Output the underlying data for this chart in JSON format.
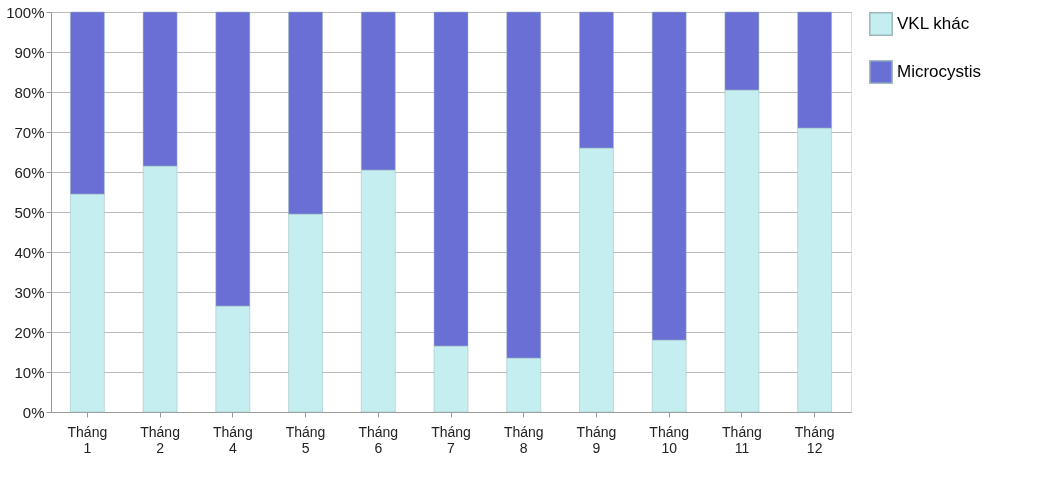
{
  "chart_data": {
    "type": "bar",
    "stacked": true,
    "categories": [
      "Tháng 1",
      "Tháng 2",
      "Tháng 4",
      "Tháng 5",
      "Tháng 6",
      "Tháng 7",
      "Tháng 8",
      "Tháng 9",
      "Tháng 10",
      "Tháng 11",
      "Tháng 12"
    ],
    "series": [
      {
        "name": "VKL khác",
        "color": "#c4eef0",
        "values": [
          54.5,
          61.5,
          26.5,
          49.5,
          60.5,
          16.5,
          13.5,
          66,
          18,
          80.5,
          71
        ]
      },
      {
        "name": "Microcystis",
        "color": "#6a6fd6",
        "values": [
          45.5,
          38.5,
          73.5,
          50.5,
          39.5,
          83.5,
          86.5,
          34,
          82,
          19.5,
          29
        ]
      }
    ],
    "ylim": [
      0,
      100
    ],
    "yticks": [
      {
        "value": 0,
        "label": "0%"
      },
      {
        "value": 10,
        "label": "10%"
      },
      {
        "value": 20,
        "label": "20%"
      },
      {
        "value": 30,
        "label": "30%"
      },
      {
        "value": 40,
        "label": "40%"
      },
      {
        "value": 50,
        "label": "50%"
      },
      {
        "value": 60,
        "label": "60%"
      },
      {
        "value": 70,
        "label": "70%"
      },
      {
        "value": 80,
        "label": "80%"
      },
      {
        "value": 90,
        "label": "90%"
      },
      {
        "value": 100,
        "label": "100%"
      }
    ],
    "grid": "y",
    "legend": "top right"
  }
}
